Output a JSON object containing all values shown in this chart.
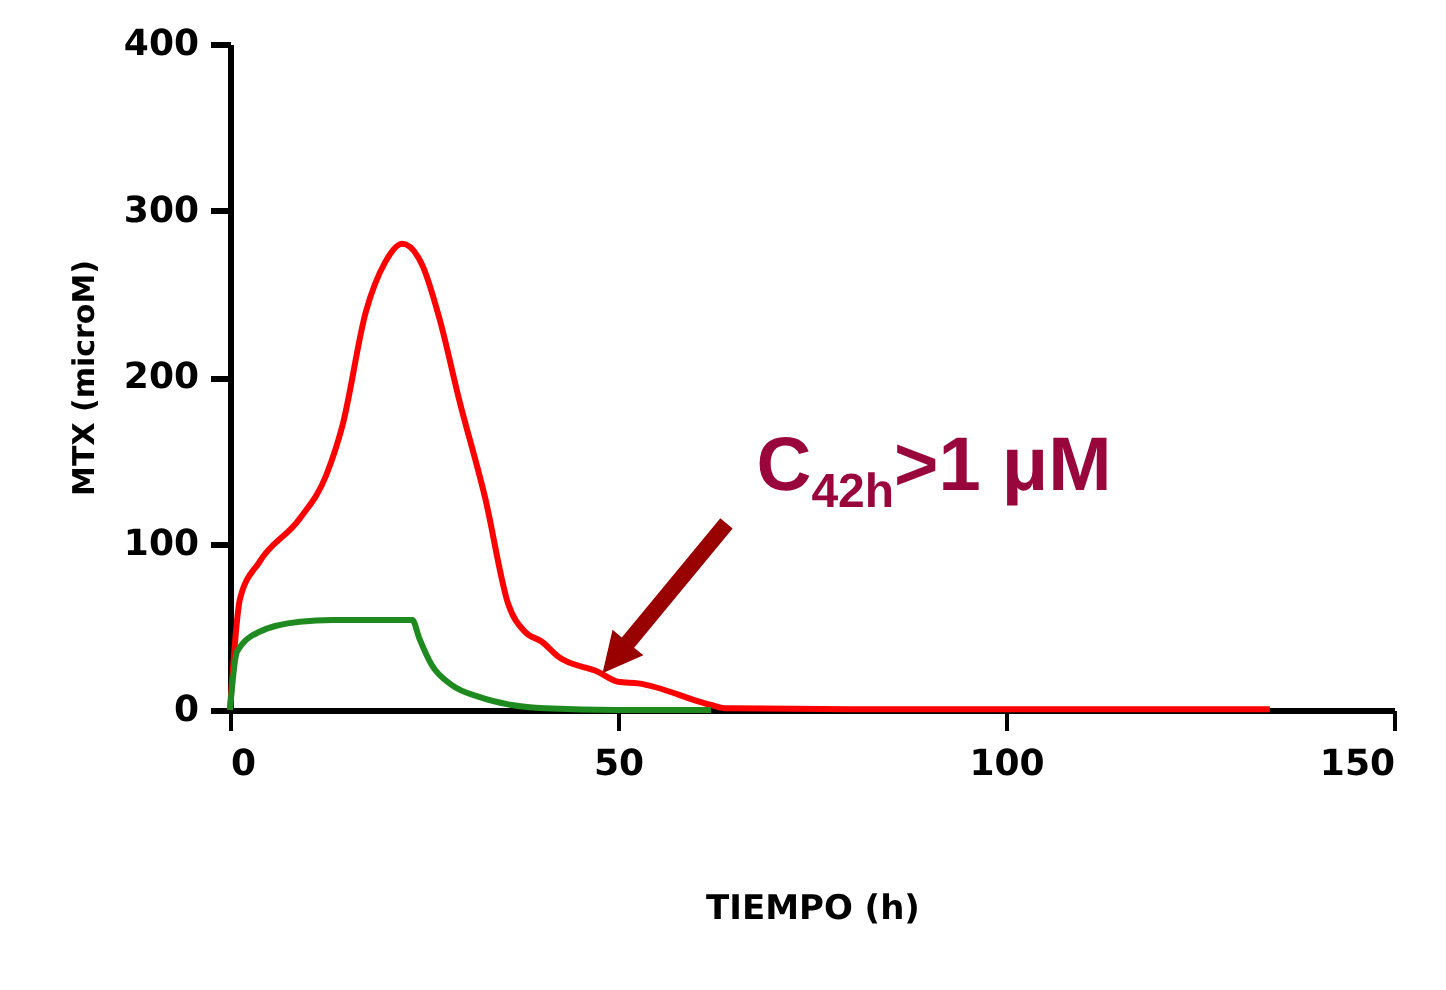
{
  "chart_data": {
    "type": "line",
    "xlabel": "TIEMPO (h)",
    "ylabel": "MTX (microM)",
    "xlim": [
      0,
      150
    ],
    "xticks": [
      0,
      50,
      100,
      150
    ],
    "ylim": [
      0,
      400
    ],
    "yticks": [
      0,
      100,
      200,
      300,
      400
    ],
    "grid": false,
    "legend": false,
    "series": [
      {
        "color": "#ff0000",
        "x": [
          0,
          1.3,
          3.8,
          9,
          12.4,
          14.5,
          17.5,
          20,
          22.2,
          24.8,
          27,
          29.5,
          32.9,
          35.9,
          38,
          40.2,
          42.3,
          47.4,
          50,
          52.6,
          62,
          64,
          80,
          100,
          134
        ],
        "values": [
          0,
          67,
          89,
          115,
          141,
          171,
          239,
          269,
          280,
          267,
          235,
          187,
          127,
          63,
          47,
          41,
          32,
          23,
          17,
          16,
          3,
          1,
          0.5,
          0.5,
          0.5
        ]
      },
      {
        "color": "#1f8a1f",
        "x": [
          0,
          0.9,
          3.8,
          9,
          13.2,
          23.5,
          24.4,
          26,
          28.6,
          32,
          36.3,
          40.6,
          50,
          62
        ],
        "values": [
          0,
          35,
          47,
          53,
          54,
          54,
          43,
          27,
          15,
          8,
          3,
          1,
          0,
          0
        ]
      }
    ],
    "annotations": [
      {
        "text": "C$_{42h}$>1 μM",
        "x": 48,
        "y": 22
      }
    ]
  }
}
